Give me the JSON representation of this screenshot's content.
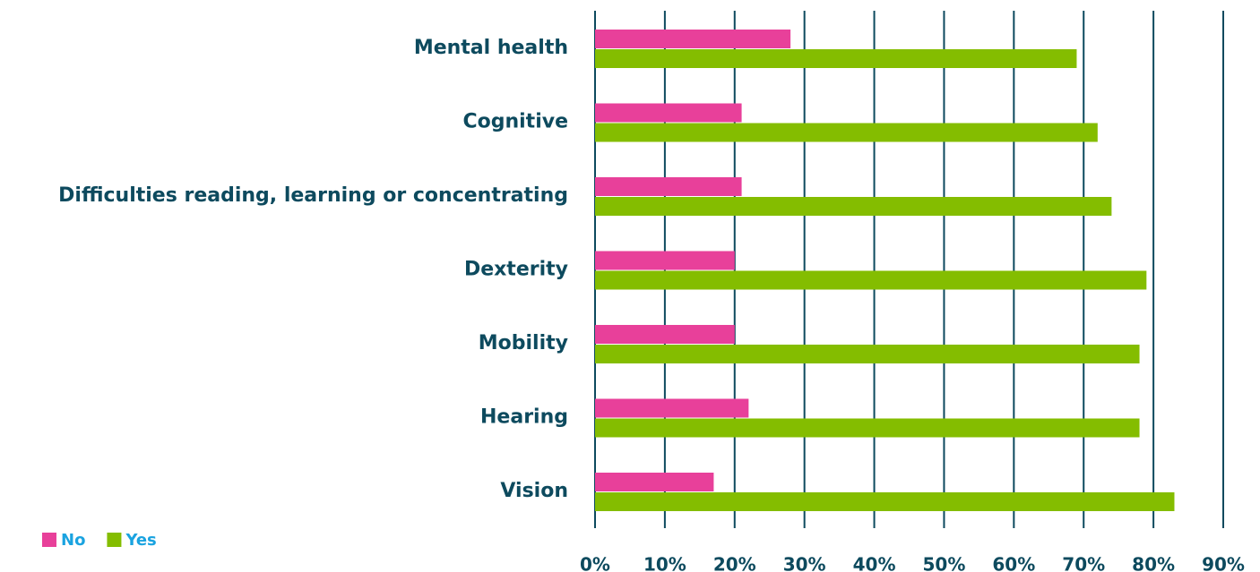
{
  "chart_data": {
    "type": "bar",
    "orientation": "horizontal",
    "categories": [
      "Mental health",
      "Cognitive",
      "Difficulties reading, learning or concentrating",
      "Dexterity",
      "Mobility",
      "Hearing",
      "Vision"
    ],
    "series": [
      {
        "name": "No",
        "color": "#e8409a",
        "values": [
          28,
          21,
          21,
          20,
          20,
          22,
          17
        ]
      },
      {
        "name": "Yes",
        "color": "#84bd00",
        "values": [
          69,
          72,
          74,
          79,
          78,
          78,
          83
        ]
      }
    ],
    "xlim": [
      0,
      90
    ],
    "xticks": [
      {
        "value": 0,
        "label": "0%"
      },
      {
        "value": 10,
        "label": "10%"
      },
      {
        "value": 20,
        "label": "20%"
      },
      {
        "value": 30,
        "label": "30%"
      },
      {
        "value": 40,
        "label": "40%"
      },
      {
        "value": 50,
        "label": "50%"
      },
      {
        "value": 60,
        "label": "60%"
      },
      {
        "value": 70,
        "label": "70%"
      },
      {
        "value": 80,
        "label": "80%"
      },
      {
        "value": 90,
        "label": "90%"
      }
    ],
    "grid": true,
    "legend": "bottom-left"
  }
}
